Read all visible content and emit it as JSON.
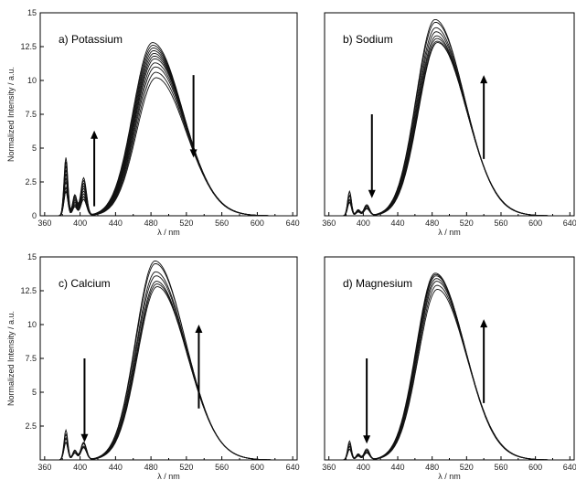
{
  "figure": {
    "panels": [
      {
        "id": "a",
        "title": "a) Potassium",
        "xlabel": "λ / nm",
        "ylabel": "Normalized Intensity / a.u.",
        "x_ticks": [
          "360",
          "400",
          "440",
          "480",
          "520",
          "560",
          "600",
          "640"
        ],
        "y_ticks": [
          "0",
          "2.5",
          "5",
          "7.5",
          "10",
          "12.5",
          "15"
        ]
      },
      {
        "id": "b",
        "title": "b) Sodium",
        "xlabel": "λ / nm",
        "ylabel": "",
        "x_ticks": [
          "360",
          "400",
          "440",
          "480",
          "520",
          "560",
          "600",
          "640"
        ],
        "y_ticks": []
      },
      {
        "id": "c",
        "title": "c) Calcium",
        "xlabel": "λ / nm",
        "ylabel": "Normalized Intensity / a.u.",
        "x_ticks": [
          "360",
          "400",
          "440",
          "480",
          "520",
          "560",
          "600",
          "640"
        ],
        "y_ticks": [
          "2.5",
          "5",
          "7.5",
          "10",
          "12.5",
          "15"
        ]
      },
      {
        "id": "d",
        "title": "d) Magnesium",
        "xlabel": "λ / nm",
        "ylabel": "",
        "x_ticks": [
          "360",
          "400",
          "440",
          "480",
          "520",
          "560",
          "600",
          "640"
        ],
        "y_ticks": []
      }
    ]
  },
  "chart_data": [
    {
      "type": "line",
      "panel": "a",
      "title": "a) Potassium",
      "xlabel": "λ / nm",
      "ylabel": "Normalized Intensity / a.u.",
      "xlim": [
        355,
        645
      ],
      "ylim": [
        0,
        15
      ],
      "peak_x": 484,
      "peak_maxima": [
        12.8,
        12.6,
        12.4,
        12.2,
        12.0,
        11.8,
        11.6,
        11.3,
        11.0,
        10.6,
        10.2
      ],
      "band1_heights": [
        1.8,
        2.1,
        2.5,
        2.8,
        3.1,
        3.4,
        3.7,
        4.0,
        4.3
      ],
      "band2_heights": [
        1.2,
        1.4,
        1.6,
        1.8,
        2.0,
        2.2,
        2.4,
        2.6,
        2.8
      ],
      "annotations": [
        {
          "direction": "up",
          "x": 416,
          "y_from": 0.7,
          "y_to": 6.3
        },
        {
          "direction": "down",
          "x": 528,
          "y_from": 10.4,
          "y_to": 4.3
        }
      ],
      "grid": false
    },
    {
      "type": "line",
      "panel": "b",
      "title": "b) Sodium",
      "xlabel": "λ / nm",
      "ylabel": "",
      "xlim": [
        355,
        645
      ],
      "ylim": [
        0,
        15
      ],
      "peak_x": 485,
      "peak_maxima": [
        14.5,
        14.3,
        13.9,
        13.6,
        13.3,
        13.1,
        12.9,
        12.8
      ],
      "band1_heights": [
        1.0,
        1.2,
        1.5,
        1.8
      ],
      "band2_heights": [
        0.5,
        0.6,
        0.7,
        0.8
      ],
      "annotations": [
        {
          "direction": "down",
          "x": 410,
          "y_from": 7.5,
          "y_to": 1.3
        },
        {
          "direction": "up",
          "x": 540,
          "y_from": 4.2,
          "y_to": 10.4
        }
      ],
      "grid": false
    },
    {
      "type": "line",
      "panel": "c",
      "title": "c) Calcium",
      "xlabel": "λ / nm",
      "ylabel": "Normalized Intensity / a.u.",
      "xlim": [
        355,
        645
      ],
      "ylim": [
        0,
        15
      ],
      "peak_x": 486,
      "peak_maxima": [
        14.7,
        14.5,
        13.9,
        13.6,
        13.2,
        13.0,
        12.8
      ],
      "band1_heights": [
        1.3,
        1.6,
        1.9,
        2.2
      ],
      "band2_heights": [
        0.9,
        1.0,
        1.2,
        1.3
      ],
      "annotations": [
        {
          "direction": "down",
          "x": 405,
          "y_from": 7.5,
          "y_to": 1.3
        },
        {
          "direction": "up",
          "x": 534,
          "y_from": 3.8,
          "y_to": 10.0
        }
      ],
      "grid": false
    },
    {
      "type": "line",
      "panel": "d",
      "title": "d) Magnesium",
      "xlabel": "λ / nm",
      "ylabel": "",
      "xlim": [
        355,
        645
      ],
      "ylim": [
        0,
        15
      ],
      "peak_x": 485,
      "peak_maxima": [
        13.8,
        13.7,
        13.6,
        13.4,
        13.2,
        12.9,
        12.6
      ],
      "band1_heights": [
        0.8,
        1.0,
        1.2,
        1.4
      ],
      "band2_heights": [
        0.5,
        0.6,
        0.7,
        0.8
      ],
      "annotations": [
        {
          "direction": "down",
          "x": 404,
          "y_from": 7.5,
          "y_to": 1.2
        },
        {
          "direction": "up",
          "x": 540,
          "y_from": 4.2,
          "y_to": 10.4
        }
      ],
      "grid": false
    }
  ]
}
